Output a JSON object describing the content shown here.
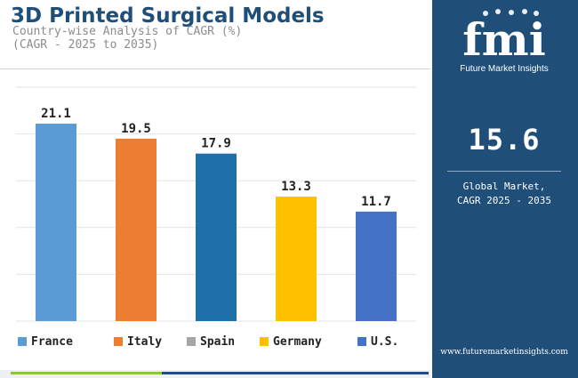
{
  "header": {
    "title": "3D Printed Surgical Models",
    "subtitle_line1": "Country-wise Analysis of CAGR (%)",
    "subtitle_line2": "(CAGR - 2025 to 2035)"
  },
  "sidebar": {
    "logo_text": "fmi",
    "logo_tagline": "Future Market Insights",
    "global_value": "15.6",
    "caption_line1": "Global Market,",
    "caption_line2": "CAGR 2025 - 2035",
    "url": "www.futuremarketinsights.com"
  },
  "colors": {
    "brand_navy": "#1f4e79",
    "accent_green": "#8cc63f"
  },
  "chart_data": {
    "type": "bar",
    "title": "3D Printed Surgical Models",
    "subtitle": "Country-wise Analysis of CAGR (%)",
    "xlabel": "",
    "ylabel": "",
    "ylim": [
      0,
      25
    ],
    "grid": true,
    "legend_position": "bottom",
    "categories": [
      "France",
      "Italy",
      "Spain",
      "Germany",
      "U.S."
    ],
    "values": [
      21.1,
      19.5,
      17.9,
      13.3,
      11.7
    ],
    "value_labels": [
      "21.1",
      "19.5",
      "17.9",
      "13.3",
      "11.7"
    ],
    "bar_colors": [
      "#5b9bd5",
      "#ed7d31",
      "#1f6fa8",
      "#ffc000",
      "#4472c4"
    ],
    "legend_colors": [
      "#5b9bd5",
      "#ed7d31",
      "#a5a5a5",
      "#ffc000",
      "#4472c4"
    ]
  }
}
